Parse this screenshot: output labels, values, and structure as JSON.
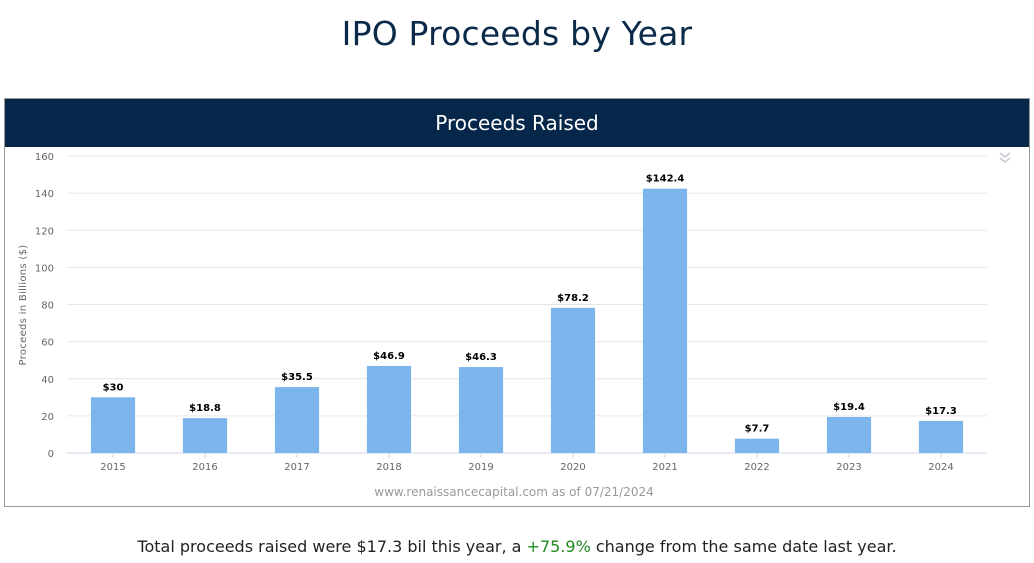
{
  "page": {
    "title": "IPO Proceeds by Year"
  },
  "panel": {
    "header": "Proceeds Raised",
    "menu_icon": "double-chevron-down-icon"
  },
  "chart_data": {
    "type": "bar",
    "title": "Proceeds Raised",
    "categories": [
      "2015",
      "2016",
      "2017",
      "2018",
      "2019",
      "2020",
      "2021",
      "2022",
      "2023",
      "2024"
    ],
    "values": [
      30,
      18.8,
      35.5,
      46.9,
      46.3,
      78.2,
      142.4,
      7.7,
      19.4,
      17.3
    ],
    "data_labels": [
      "$30",
      "$18.8",
      "$35.5",
      "$46.9",
      "$46.3",
      "$78.2",
      "$142.4",
      "$7.7",
      "$19.4",
      "$17.3"
    ],
    "ylabel": "Proceeds in Billions ($)",
    "xlabel": "",
    "ylim": [
      0,
      160
    ],
    "yticks": [
      0,
      20,
      40,
      60,
      80,
      100,
      120,
      140,
      160
    ],
    "grid": true,
    "bar_color": "#7cb4ec",
    "credit": "www.renaissancecapital.com as of 07/21/2024"
  },
  "footer": {
    "prefix": "Total proceeds raised were $17.3 bil this year, a ",
    "change": "+75.9%",
    "suffix": " change from the same date last year.",
    "change_color": "#1e8a1e"
  }
}
